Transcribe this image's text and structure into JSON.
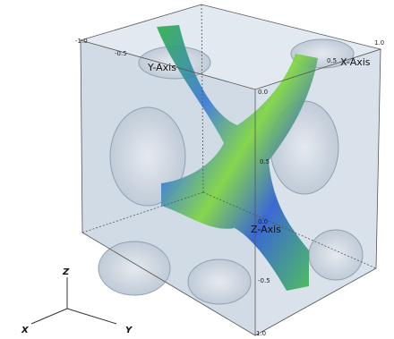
{
  "axes": {
    "y": {
      "label": "Y-Axis",
      "ticks": [
        "-1.0",
        "-0.5",
        "0.0"
      ]
    },
    "x": {
      "label": "X-Axis",
      "ticks": [
        "0.5",
        "1.0"
      ]
    },
    "z": {
      "label": "Z-Axis",
      "ticks": [
        "0.5",
        "0.0",
        "-0.5",
        "1.0"
      ]
    }
  },
  "triad": {
    "z": "Z",
    "x": "X",
    "y": "Y"
  }
}
